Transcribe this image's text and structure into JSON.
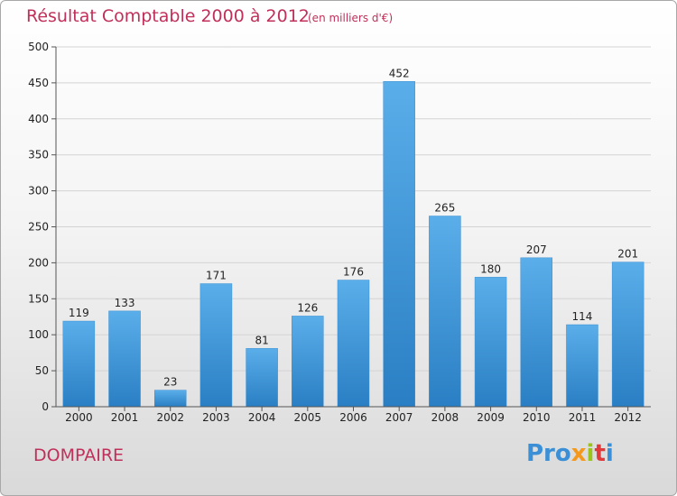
{
  "title": "Résultat Comptable 2000 à 2012",
  "subtitle": "(en milliers d'€)",
  "place": "DOMPAIRE",
  "logo": {
    "text": "Proxiti",
    "parts": [
      "Pro",
      "x",
      "i",
      "t",
      "i"
    ]
  },
  "colors": {
    "title": "#c0305a",
    "bar_light": "#5aaee9",
    "bar_dark": "#2a7fc4"
  },
  "chart_data": {
    "type": "bar",
    "title": "Résultat Comptable 2000 à 2012",
    "subtitle": "(en milliers d'€)",
    "categories": [
      "2000",
      "2001",
      "2002",
      "2003",
      "2004",
      "2005",
      "2006",
      "2007",
      "2008",
      "2009",
      "2010",
      "2011",
      "2012"
    ],
    "values": [
      119,
      133,
      23,
      171,
      81,
      126,
      176,
      452,
      265,
      180,
      207,
      114,
      201
    ],
    "ylim": [
      0,
      500
    ],
    "yticks": [
      0,
      50,
      100,
      150,
      200,
      250,
      300,
      350,
      400,
      450,
      500
    ],
    "grid": true,
    "xlabel": "",
    "ylabel": ""
  }
}
